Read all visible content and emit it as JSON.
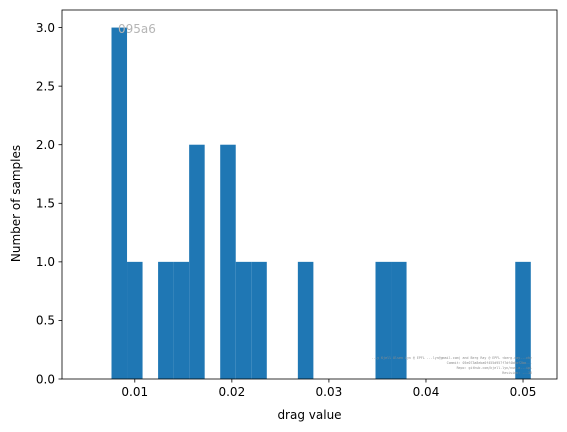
{
  "chart_data": {
    "type": "bar",
    "subtype": "histogram",
    "title": "",
    "xlabel": "drag value",
    "ylabel": "Number of samples",
    "xlim": [
      0.0025,
      0.0535
    ],
    "ylim": [
      0,
      3.15
    ],
    "x_ticks": [
      0.01,
      0.02,
      0.03,
      0.04,
      0.05
    ],
    "x_tick_labels": [
      "0.01",
      "0.02",
      "0.03",
      "0.04",
      "0.05"
    ],
    "y_ticks": [
      0,
      0.5,
      1.0,
      1.5,
      2.0,
      2.5,
      3.0
    ],
    "y_tick_labels": [
      "0.0",
      "0.5",
      "1.0",
      "1.5",
      "2.0",
      "2.5",
      "3.0"
    ],
    "bin_width": 0.0016,
    "bins": [
      {
        "x0": 0.0076,
        "count": 3
      },
      {
        "x0": 0.0092,
        "count": 1
      },
      {
        "x0": 0.0124,
        "count": 1
      },
      {
        "x0": 0.014,
        "count": 1
      },
      {
        "x0": 0.0156,
        "count": 2
      },
      {
        "x0": 0.0188,
        "count": 2
      },
      {
        "x0": 0.0204,
        "count": 1
      },
      {
        "x0": 0.022,
        "count": 1
      },
      {
        "x0": 0.0268,
        "count": 1
      },
      {
        "x0": 0.0348,
        "count": 1
      },
      {
        "x0": 0.0364,
        "count": 1
      },
      {
        "x0": 0.0492,
        "count": 1
      }
    ],
    "bar_color": "#1f77b4",
    "annotation": "095a6",
    "watermark_lines": [
      "...y Kjell Olsen Lyn @ EPFL ...lyn@gmail.com) and Berg Ray @ EPFL <berg.ray...ch>",
      "Commit: 05e073a8eba0f455d957f7df4b6af2ba...",
      "Repo: github.com/kjell-lyn/num-a...ipl",
      "Revision: ...16"
    ]
  }
}
